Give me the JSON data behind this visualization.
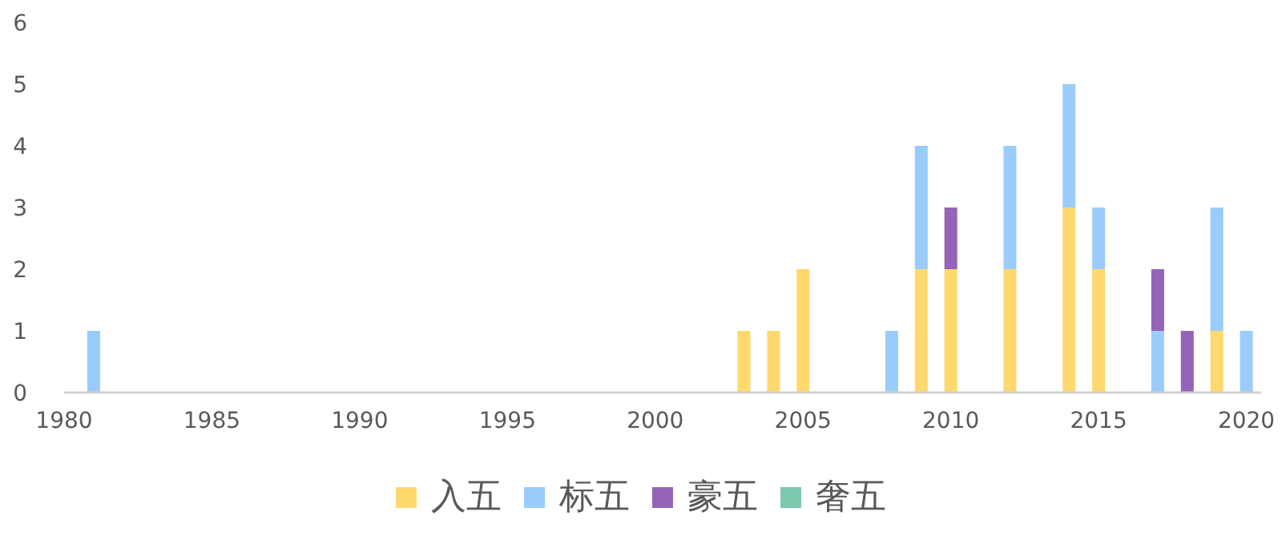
{
  "chart_data": {
    "type": "bar",
    "stacked": true,
    "x": [
      1981,
      2003,
      2004,
      2005,
      2008,
      2009,
      2010,
      2012,
      2014,
      2015,
      2017,
      2018,
      2019,
      2020
    ],
    "series": [
      {
        "name": "入五",
        "color": "#ffd86e",
        "values": [
          null,
          1,
          1,
          2,
          null,
          2,
          2,
          2,
          3,
          2,
          null,
          null,
          1,
          null
        ]
      },
      {
        "name": "标五",
        "color": "#99ccfb",
        "values": [
          1,
          null,
          null,
          null,
          1,
          2,
          null,
          2,
          2,
          1,
          1,
          null,
          2,
          1
        ]
      },
      {
        "name": "豪五",
        "color": "#9563b8",
        "values": [
          null,
          null,
          null,
          null,
          null,
          null,
          1,
          null,
          null,
          null,
          1,
          1,
          null,
          null
        ]
      },
      {
        "name": "奢五",
        "color": "#7cc9ad",
        "values": [
          null,
          null,
          null,
          null,
          null,
          null,
          null,
          null,
          null,
          null,
          null,
          null,
          null,
          null
        ]
      }
    ],
    "xlim": [
      1980,
      2020.5
    ],
    "xticks": [
      1980,
      1985,
      1990,
      1995,
      2000,
      2005,
      2010,
      2015,
      2020
    ],
    "ylim": [
      0,
      6
    ],
    "yticks": [
      0,
      1,
      2,
      3,
      4,
      5,
      6
    ],
    "grid": false,
    "legend": "bottom"
  }
}
